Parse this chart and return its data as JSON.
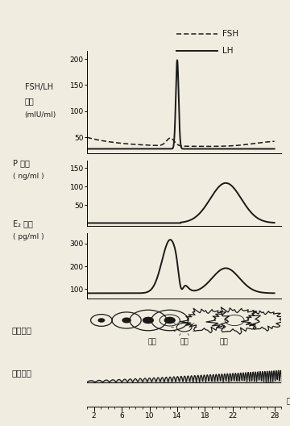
{
  "xlim": [
    1,
    29
  ],
  "x_ticks": [
    2,
    6,
    10,
    14,
    18,
    22,
    28
  ],
  "panel1_yticks": [
    50,
    100,
    150,
    200
  ],
  "panel1_ylim": [
    20,
    215
  ],
  "panel2_yticks": [
    50,
    100,
    150
  ],
  "panel2_ylim": [
    -5,
    170
  ],
  "panel3_yticks": [
    100,
    200,
    300
  ],
  "panel3_ylim": [
    60,
    345
  ],
  "bg_color": "#f0ece0",
  "line_color": "#1a1a1a",
  "panel1_label1": "FSH/LH",
  "panel1_label2": "含量",
  "panel1_label3": "(mIU/ml)",
  "panel2_label1": "P 含量",
  "panel2_label2": "( ng/ml )",
  "panel3_label1": "E₂ 含量",
  "panel3_label2": "( pg/ml )",
  "ovary_label": "卵巢周期",
  "ovary_sub1": "卵泡",
  "ovary_sub2": "排卵",
  "ovary_sub3": "黄体",
  "uterus_label": "子宫内膜",
  "day_label": "天",
  "legend_fsh": "FSH",
  "legend_lh": "LH"
}
